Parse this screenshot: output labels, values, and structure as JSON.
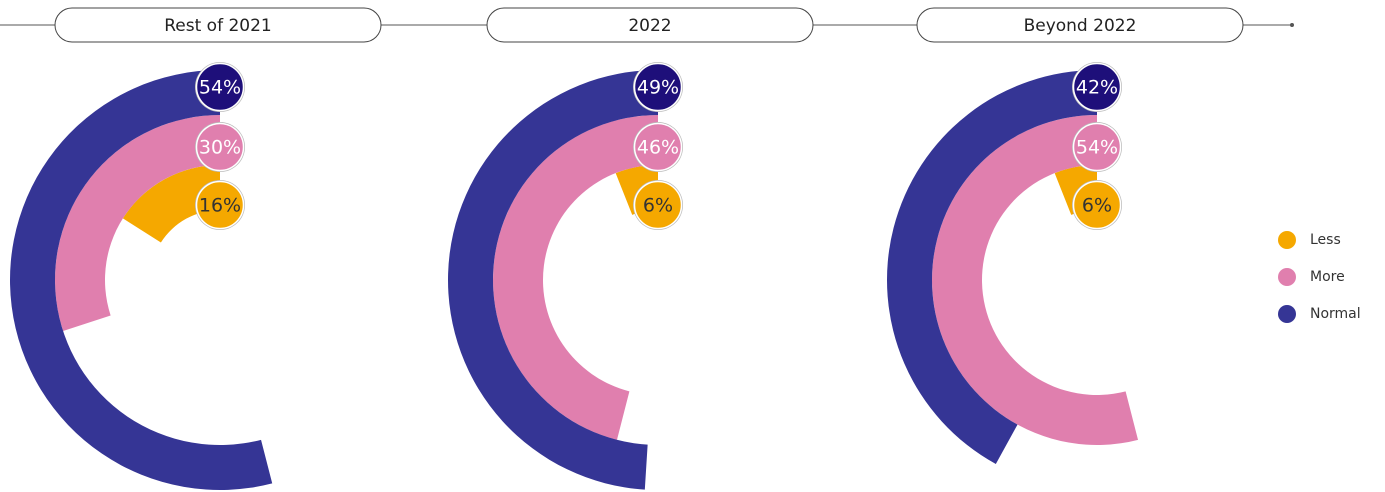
{
  "chart_data": {
    "type": "radial_bar",
    "categories": [
      "Rest of 2021",
      "2022",
      "Beyond 2022"
    ],
    "ylim": [
      0,
      100
    ],
    "series": [
      {
        "name": "Less",
        "color": "#f5a800",
        "values": [
          16,
          6,
          6
        ],
        "value_labels": [
          "16%",
          "6%",
          "6%"
        ]
      },
      {
        "name": "More",
        "color": "#e07fae",
        "values": [
          30,
          46,
          54
        ],
        "value_labels": [
          "30%",
          "46%",
          "54%"
        ]
      },
      {
        "name": "Normal",
        "color": "#353595",
        "values": [
          54,
          49,
          42
        ],
        "value_labels": [
          "54%",
          "49%",
          "42%"
        ]
      }
    ]
  }
}
